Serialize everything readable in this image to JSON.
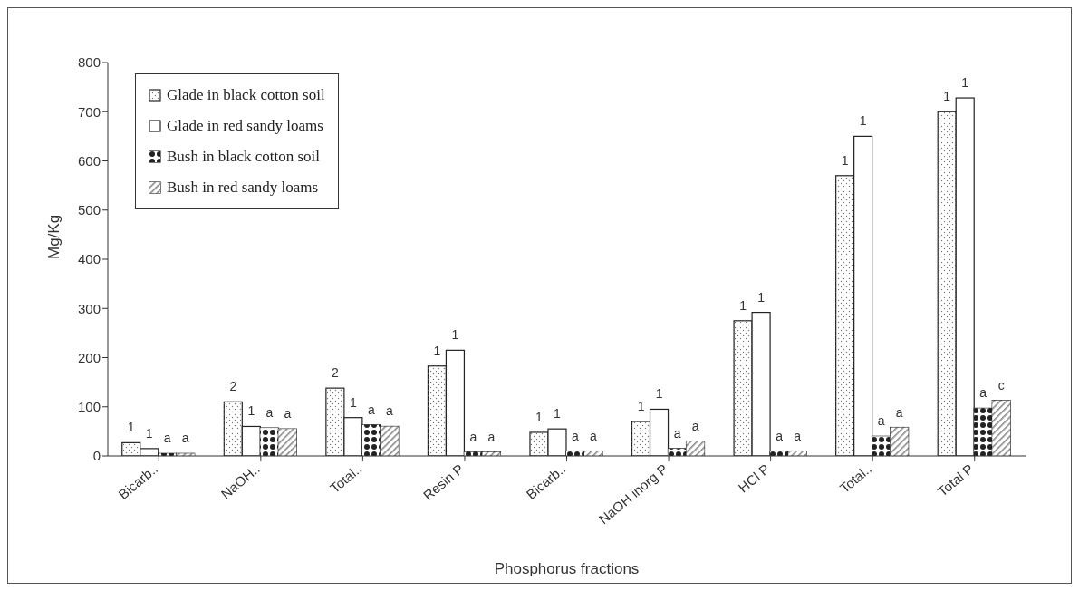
{
  "chart_data": {
    "type": "bar",
    "xlabel": "Phosphorus fractions",
    "ylabel": "Mg/Kg",
    "categories": [
      "Bicarb..",
      "NaOH..",
      "Total..",
      "Resin P",
      "Bicarb..",
      "NaOH inorg P",
      "HCl P",
      "Total..",
      "Total P"
    ],
    "series": [
      {
        "name": "Glade in black cotton soil",
        "color": "#ffffff",
        "values": [
          27,
          110,
          138,
          183,
          48,
          70,
          275,
          570,
          700
        ]
      },
      {
        "name": "Glade in red sandy loams",
        "color": "#ffffff",
        "values": [
          15,
          60,
          78,
          215,
          55,
          95,
          292,
          650,
          728
        ]
      },
      {
        "name": "Bush in black cotton soil",
        "color": "#222222",
        "values": [
          5,
          57,
          63,
          8,
          10,
          15,
          10,
          40,
          97
        ]
      },
      {
        "name": "Bush in red sandy loams",
        "color": "#888888",
        "values": [
          5,
          55,
          60,
          8,
          10,
          30,
          10,
          58,
          113
        ]
      }
    ],
    "annotations": [
      "1",
      "2",
      "2",
      "1",
      "1",
      "1",
      "1",
      "1",
      "1",
      "1",
      "1",
      "1",
      "1",
      "1",
      "1",
      "1",
      "1",
      "1",
      "a",
      "a",
      "a",
      "a",
      "a",
      "a",
      "a",
      "a",
      "a",
      "a",
      "a",
      "a",
      "a",
      "a",
      "a",
      "a",
      "a",
      "c"
    ],
    "ylim": [
      0,
      800
    ],
    "yticks": [
      0,
      100,
      200,
      300,
      400,
      500,
      600,
      700,
      800
    ],
    "grid": false,
    "legend": "top left"
  }
}
